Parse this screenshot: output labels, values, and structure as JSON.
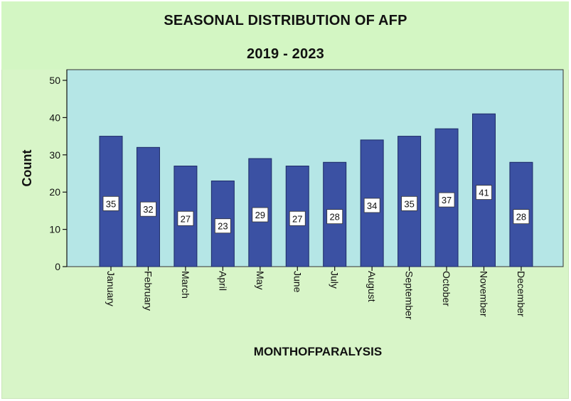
{
  "chart_data": {
    "type": "bar",
    "title": "SEASONAL DISTRIBUTION OF AFP",
    "subtitle": "2019 - 2023",
    "xlabel": "MONTHOFPARALYSIS",
    "ylabel": "Count",
    "ylim": [
      0,
      50
    ],
    "yticks": [
      "0",
      "10",
      "20",
      "30",
      "40",
      "50"
    ],
    "categories": [
      "January",
      "February",
      "March",
      "April",
      "May",
      "June",
      "July",
      "August",
      "September",
      "October",
      "November",
      "December"
    ],
    "values": [
      35,
      32,
      27,
      23,
      29,
      27,
      28,
      34,
      35,
      37,
      41,
      28
    ],
    "data_labels": [
      "35",
      "32",
      "27",
      "23",
      "29",
      "27",
      "28",
      "34",
      "35",
      "37",
      "41",
      "28"
    ],
    "grid": false,
    "legend": "none",
    "colors": {
      "bar": "#3b51a3",
      "bar_edge": "#1c2a66",
      "plot_bg": "#b5e6e6",
      "frame_bg": "#d8f5c8"
    }
  }
}
